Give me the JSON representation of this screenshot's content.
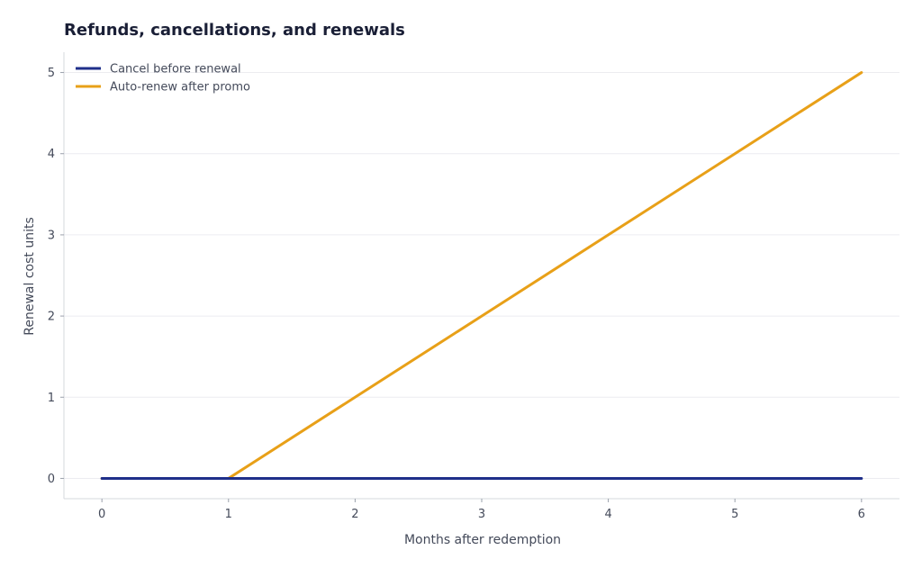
{
  "chart_data": {
    "type": "line",
    "title": "Refunds, cancellations, and renewals",
    "xlabel": "Months after redemption",
    "ylabel": "Renewal cost units",
    "x": [
      0,
      1,
      2,
      3,
      4,
      5,
      6
    ],
    "xlim": [
      -0.3,
      6.3
    ],
    "ylim": [
      -0.25,
      5.25
    ],
    "xticks": [
      "0",
      "1",
      "2",
      "3",
      "4",
      "5",
      "6"
    ],
    "yticks": [
      "0",
      "1",
      "2",
      "3",
      "4",
      "5"
    ],
    "grid": "horizontal",
    "legend_position": "top-left",
    "series": [
      {
        "name": "Cancel before renewal",
        "color": "#1f2f8a",
        "values": [
          0,
          0,
          0,
          0,
          0,
          0,
          0
        ]
      },
      {
        "name": "Auto-renew after promo",
        "color": "#e8a018",
        "values": [
          0,
          0,
          1,
          2,
          3,
          4,
          5
        ]
      }
    ]
  }
}
